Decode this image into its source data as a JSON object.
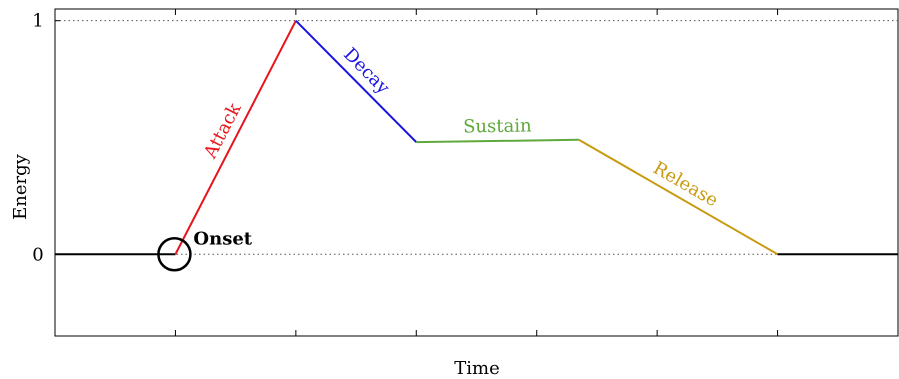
{
  "chart_data": {
    "type": "line",
    "title": "",
    "xlabel": "Time",
    "ylabel": "Energy",
    "ylim": [
      -0.35,
      1.05
    ],
    "yticks": [
      {
        "value": 0,
        "label": "0"
      },
      {
        "value": 1,
        "label": "1"
      }
    ],
    "xlim": [
      0,
      7
    ],
    "xticks": [
      1,
      2,
      3,
      4,
      5,
      6
    ],
    "grid": "dotted horizontal lines at y=0 and y=1",
    "series": [
      {
        "name": "",
        "color": "#000000",
        "points": [
          [
            0,
            0
          ],
          [
            1,
            0
          ]
        ]
      },
      {
        "name": "Attack",
        "color": "#e8141c",
        "points": [
          [
            1,
            0
          ],
          [
            2,
            1
          ]
        ]
      },
      {
        "name": "Decay",
        "color": "#1a14e0",
        "points": [
          [
            2,
            1
          ],
          [
            3,
            0.48
          ]
        ]
      },
      {
        "name": "Sustain",
        "color": "#5fa83c",
        "points": [
          [
            3,
            0.48
          ],
          [
            4.35,
            0.49
          ]
        ]
      },
      {
        "name": "Release",
        "color": "#c89a10",
        "points": [
          [
            4.35,
            0.49
          ],
          [
            6,
            0
          ]
        ]
      },
      {
        "name": "",
        "color": "#000000",
        "points": [
          [
            6,
            0
          ],
          [
            7,
            0
          ]
        ]
      }
    ],
    "annotations": [
      {
        "text": "Onset",
        "x": 1,
        "y": 0,
        "marker": "circle"
      }
    ]
  }
}
